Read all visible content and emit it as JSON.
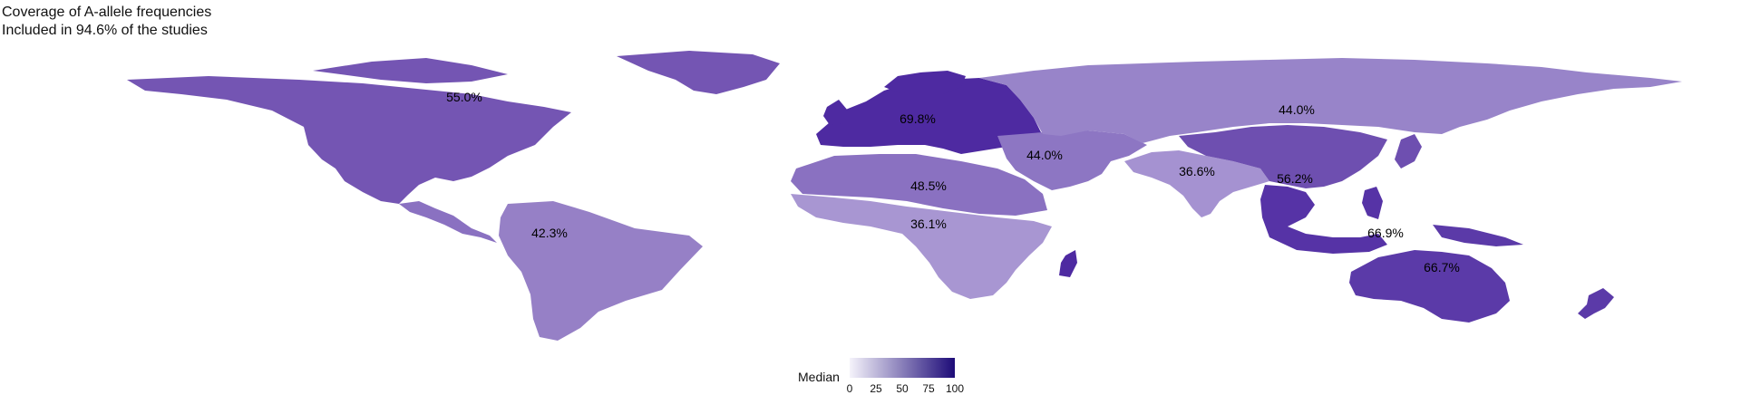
{
  "title": {
    "line1": "Coverage of A-allele frequencies",
    "line2": "Included in 94.6% of the studies"
  },
  "legend": {
    "title": "Median",
    "ticks": [
      "0",
      "25",
      "50",
      "75",
      "100"
    ],
    "color_low": "#f5f3fb",
    "color_high": "#1d0b78"
  },
  "map_regions": [
    {
      "name": "North America",
      "label": "55.0%",
      "value": 55.0,
      "color": "#7455b3"
    },
    {
      "name": "South America",
      "label": "42.3%",
      "value": 42.3,
      "color": "#9680c6"
    },
    {
      "name": "Europe",
      "label": "69.8%",
      "value": 69.8,
      "color": "#4e2aa1"
    },
    {
      "name": "North Africa",
      "label": "48.5%",
      "value": 48.5,
      "color": "#8a71c1"
    },
    {
      "name": "Sub-Saharan Africa",
      "label": "36.1%",
      "value": 36.1,
      "color": "#a896d2"
    },
    {
      "name": "Middle East",
      "label": "44.0%",
      "value": 44.0,
      "color": "#8d76c3"
    },
    {
      "name": "Russia / North Asia",
      "label": "44.0%",
      "value": 44.0,
      "color": "#9884c9"
    },
    {
      "name": "South Asia",
      "label": "36.6%",
      "value": 36.6,
      "color": "#a592d1"
    },
    {
      "name": "East Asia",
      "label": "56.2%",
      "value": 56.2,
      "color": "#6e4fb0"
    },
    {
      "name": "Southeast Asia",
      "label": "66.9%",
      "value": 66.9,
      "color": "#5633a6"
    },
    {
      "name": "Oceania",
      "label": "66.7%",
      "value": 66.7,
      "color": "#5b3aa8"
    }
  ]
}
